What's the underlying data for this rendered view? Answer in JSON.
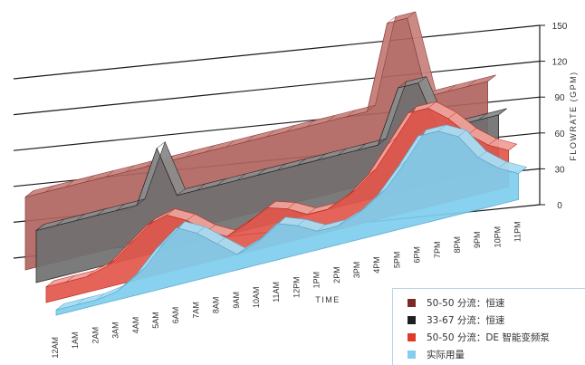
{
  "chart_data": {
    "type": "area",
    "xlabel": "TIME",
    "ylabel": "FLOWRATE (GPM)",
    "ylim": [
      0,
      150
    ],
    "yticks": [
      "0",
      "30",
      "60",
      "90",
      "120",
      "150"
    ],
    "categories": [
      "12AM",
      "1AM",
      "2AM",
      "3AM",
      "4AM",
      "5AM",
      "6AM",
      "7AM",
      "8AM",
      "9AM",
      "10AM",
      "11AM",
      "12PM",
      "1PM",
      "2PM",
      "3PM",
      "4PM",
      "5PM",
      "6PM",
      "7PM",
      "8PM",
      "9PM",
      "10PM",
      "11PM"
    ],
    "series": [
      {
        "name": "50-50 分流：恒速",
        "color": "#9b3a36",
        "values": [
          70,
          70,
          70,
          70,
          70,
          70,
          70,
          70,
          70,
          70,
          70,
          70,
          70,
          70,
          70,
          70,
          70,
          70,
          150,
          150,
          70,
          70,
          70,
          70
        ]
      },
      {
        "name": "33-67 分流：恒速",
        "color": "#2b2b2b",
        "values": [
          50,
          50,
          50,
          50,
          50,
          50,
          100,
          50,
          50,
          50,
          50,
          50,
          50,
          50,
          50,
          50,
          50,
          50,
          100,
          100,
          50,
          50,
          50,
          50
        ]
      },
      {
        "name": "50-50 分流：DE 智能变频泵",
        "color": "#e2251c",
        "values": [
          15,
          15,
          15,
          20,
          35,
          50,
          55,
          45,
          30,
          20,
          28,
          38,
          32,
          22,
          22,
          30,
          45,
          70,
          95,
          95,
          80,
          60,
          45,
          35
        ]
      },
      {
        "name": "实际用量",
        "color": "#7ecfef",
        "values": [
          5,
          5,
          5,
          8,
          20,
          40,
          55,
          45,
          30,
          15,
          22,
          35,
          28,
          18,
          18,
          25,
          38,
          60,
          85,
          85,
          75,
          50,
          35,
          25
        ]
      }
    ]
  },
  "legend": {
    "items": [
      {
        "label": "50-50 分流：恒速",
        "color": "#7b2a28"
      },
      {
        "label": "33-67 分流：恒速",
        "color": "#1f1f1f"
      },
      {
        "label": "50-50 分流：DE 智能变频泵",
        "color": "#e03a2a"
      },
      {
        "label": "实际用量",
        "color": "#84cdee"
      }
    ]
  }
}
